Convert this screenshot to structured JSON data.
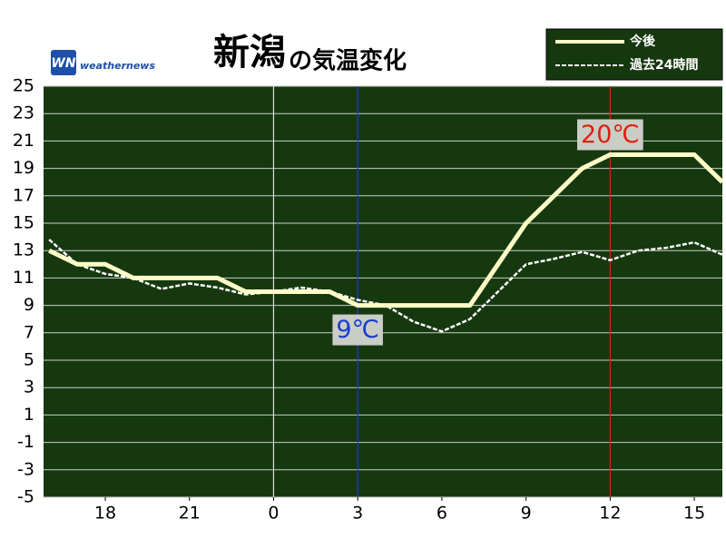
{
  "chart_data": {
    "type": "line",
    "title": "新潟",
    "subtitle": "の気温変化",
    "logo": "weathernews",
    "x": [
      16,
      17,
      18,
      19,
      20,
      21,
      22,
      23,
      24,
      25,
      26,
      27,
      28,
      29,
      30,
      31,
      32,
      33,
      34,
      35,
      36,
      37,
      38,
      39,
      40
    ],
    "series": [
      {
        "name": "今後",
        "color": "#fffcc8",
        "style": "solid",
        "values": [
          13,
          12,
          12,
          11,
          11,
          11,
          11,
          10,
          10,
          10,
          10,
          9,
          9,
          9,
          9,
          9,
          12,
          15,
          17,
          19,
          20,
          20,
          20,
          20,
          18
        ]
      },
      {
        "name": "過去24時間",
        "color": "#ffffff",
        "style": "dashed",
        "values": [
          13.8,
          12,
          11.3,
          11,
          10.2,
          10.6,
          10.3,
          9.8,
          10,
          10.3,
          10,
          9.4,
          9,
          7.8,
          7.1,
          8,
          10,
          12,
          12.4,
          12.9,
          12.3,
          13,
          13.2,
          13.6,
          12.7
        ]
      }
    ],
    "xlim": [
      15.8,
      40
    ],
    "xticks": [
      18,
      21,
      {
        "value": 24,
        "label": "0"
      },
      {
        "value": 27,
        "label": "3"
      },
      {
        "value": 30,
        "label": "6"
      },
      {
        "value": 33,
        "label": "9"
      },
      {
        "value": 36,
        "label": "12"
      },
      {
        "value": 39,
        "label": "15"
      }
    ],
    "ylim": [
      -5,
      25
    ],
    "yticks": [
      -5,
      -3,
      -1,
      1,
      3,
      5,
      7,
      9,
      11,
      13,
      15,
      17,
      19,
      21,
      23,
      25
    ],
    "grid": true,
    "vlines": [
      {
        "x": 24,
        "color": "#dddddd"
      },
      {
        "x": 27,
        "color": "#1a3ccc"
      },
      {
        "x": 36,
        "color": "#cc2a10"
      }
    ],
    "annotations": [
      {
        "text": "9℃",
        "x": 27,
        "y": 9,
        "color": "#1a3ccc"
      },
      {
        "text": "20℃",
        "x": 36,
        "y": 20,
        "color": "#e02010"
      }
    ],
    "legend": "top-right"
  }
}
